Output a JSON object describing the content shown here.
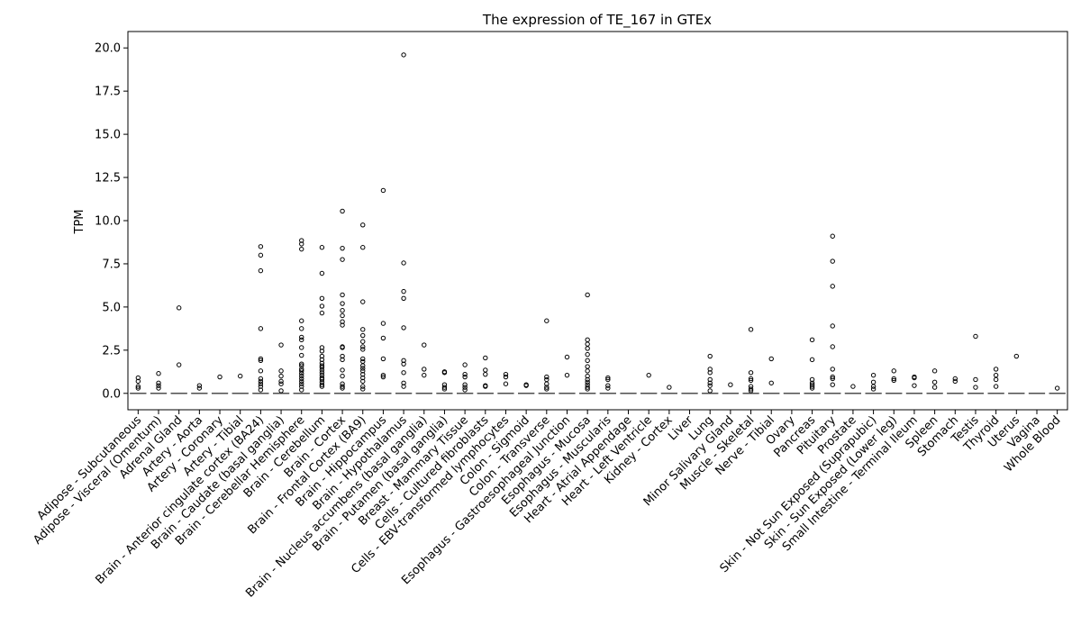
{
  "chart_data": {
    "type": "box",
    "title": "The expression of TE_167 in GTEx",
    "xlabel": "",
    "ylabel": "TPM",
    "ylim": [
      -0.95,
      20.95
    ],
    "yticks": [
      "0.0",
      "2.5",
      "5.0",
      "7.5",
      "10.0",
      "12.5",
      "15.0",
      "17.5",
      "20.0"
    ],
    "ytick_values": [
      0,
      2.5,
      5,
      7.5,
      10,
      12.5,
      15,
      17.5,
      20
    ],
    "grid": false,
    "legend": "none",
    "colors": {
      "box": "#000000",
      "median": "#555555",
      "outlier_edge": "#000000"
    },
    "categories": [
      "Adipose - Subcutaneous",
      "Adipose - Visceral (Omentum)",
      "Adrenal Gland",
      "Artery - Aorta",
      "Artery - Coronary",
      "Artery - Tibial",
      "Brain - Anterior cingulate cortex (BA24)",
      "Brain - Caudate (basal ganglia)",
      "Brain - Cerebellar Hemisphere",
      "Brain - Cerebellum",
      "Brain - Cortex",
      "Brain - Frontal Cortex (BA9)",
      "Brain - Hippocampus",
      "Brain - Hypothalamus",
      "Brain - Nucleus accumbens (basal ganglia)",
      "Brain - Putamen (basal ganglia)",
      "Breast - Mammary Tissue",
      "Cells - Cultured fibroblasts",
      "Cells - EBV-transformed lymphocytes",
      "Colon - Sigmoid",
      "Colon - Transverse",
      "Esophagus - Gastroesophageal Junction",
      "Esophagus - Mucosa",
      "Esophagus - Muscularis",
      "Heart - Atrial Appendage",
      "Heart - Left Ventricle",
      "Kidney - Cortex",
      "Liver",
      "Lung",
      "Minor Salivary Gland",
      "Muscle - Skeletal",
      "Nerve - Tibial",
      "Ovary",
      "Pancreas",
      "Pituitary",
      "Prostate",
      "Skin - Not Sun Exposed (Suprapubic)",
      "Skin - Sun Exposed (Lower leg)",
      "Small Intestine - Terminal Ileum",
      "Spleen",
      "Stomach",
      "Testis",
      "Thyroid",
      "Uterus",
      "Vagina",
      "Whole Blood"
    ],
    "medians": [
      0,
      0,
      0,
      0,
      0,
      0,
      0,
      0,
      0,
      0,
      0,
      0,
      0,
      0,
      0,
      0,
      0,
      0,
      0,
      0,
      0,
      0,
      0,
      0,
      0,
      0,
      0,
      0,
      0,
      0,
      0,
      0,
      0,
      0,
      0,
      0,
      0,
      0,
      0,
      0,
      0,
      0,
      0,
      0,
      0,
      0
    ],
    "outliers": [
      [
        0.9,
        0.7,
        0.4,
        0.3
      ],
      [
        1.15,
        0.6,
        0.45,
        0.3
      ],
      [
        4.95,
        1.65
      ],
      [
        0.45,
        0.3
      ],
      [
        0.95
      ],
      [
        1.0
      ],
      [
        8.5,
        8.0,
        7.1,
        3.75,
        2.0,
        1.9,
        1.3,
        0.85,
        0.7,
        0.55,
        0.4,
        0.2
      ],
      [
        2.8,
        1.3,
        1.0,
        0.7,
        0.55,
        0.15
      ],
      [
        8.85,
        8.65,
        8.35,
        4.2,
        3.75,
        3.25,
        3.1,
        2.65,
        2.2,
        1.7,
        1.6,
        1.4,
        1.3,
        1.15,
        1.0,
        0.85,
        0.7,
        0.55,
        0.4,
        0.2
      ],
      [
        8.45,
        6.95,
        5.5,
        5.05,
        4.65,
        2.65,
        2.45,
        2.15,
        1.95,
        1.75,
        1.6,
        1.5,
        1.35,
        1.2,
        1.05,
        0.9,
        0.8,
        0.65,
        0.5,
        0.4
      ],
      [
        10.55,
        8.4,
        7.75,
        5.7,
        5.2,
        4.8,
        4.5,
        4.15,
        3.95,
        2.7,
        2.65,
        2.15,
        1.95,
        1.35,
        1.0,
        0.55,
        0.4,
        0.3
      ],
      [
        9.75,
        8.45,
        5.3,
        3.7,
        3.35,
        3.0,
        2.7,
        2.55,
        2.0,
        1.85,
        1.6,
        1.45,
        1.3,
        1.1,
        0.9,
        0.7,
        0.4,
        0.25
      ],
      [
        11.75,
        4.05,
        3.2,
        2.0,
        1.05,
        0.95
      ],
      [
        19.6,
        7.55,
        5.9,
        5.5,
        3.8,
        1.9,
        1.7,
        1.2,
        0.6,
        0.4
      ],
      [
        2.8,
        1.4,
        1.05
      ],
      [
        1.25,
        1.2,
        0.5,
        0.35,
        0.25
      ],
      [
        1.65,
        1.1,
        0.95,
        0.5,
        0.35,
        0.2
      ],
      [
        2.05,
        1.35,
        1.1,
        0.45,
        0.4
      ],
      [
        1.1,
        0.95,
        0.55
      ],
      [
        0.5,
        0.45
      ],
      [
        4.2,
        0.95,
        0.8,
        0.55,
        0.35,
        0.25
      ],
      [
        2.1,
        1.05
      ],
      [
        5.7,
        3.1,
        2.85,
        2.6,
        2.25,
        1.9,
        1.55,
        1.3,
        1.0,
        0.8,
        0.65,
        0.5,
        0.35,
        0.25
      ],
      [
        0.9,
        0.8,
        0.45,
        0.3
      ],
      [],
      [
        1.05
      ],
      [
        0.35
      ],
      [],
      [
        2.15,
        1.4,
        1.2,
        0.8,
        0.6,
        0.45,
        0.15
      ],
      [
        0.5
      ],
      [
        3.7,
        1.2,
        0.85,
        0.75,
        0.4,
        0.25,
        0.15
      ],
      [
        2.0,
        0.6
      ],
      [],
      [
        3.1,
        1.95,
        0.8,
        0.6,
        0.5,
        0.4,
        0.3
      ],
      [
        9.1,
        7.65,
        6.2,
        3.9,
        2.7,
        1.4,
        0.95,
        0.85,
        0.5
      ],
      [
        0.4
      ],
      [
        1.05,
        0.65,
        0.4,
        0.25
      ],
      [
        1.3,
        0.85,
        0.75
      ],
      [
        0.95,
        0.9,
        0.45
      ],
      [
        1.3,
        0.65,
        0.35
      ],
      [
        0.85,
        0.7
      ],
      [
        3.3,
        0.8,
        0.35
      ],
      [
        1.4,
        1.05,
        0.8,
        0.4
      ],
      [
        2.15
      ],
      [],
      [
        0.3
      ]
    ]
  }
}
